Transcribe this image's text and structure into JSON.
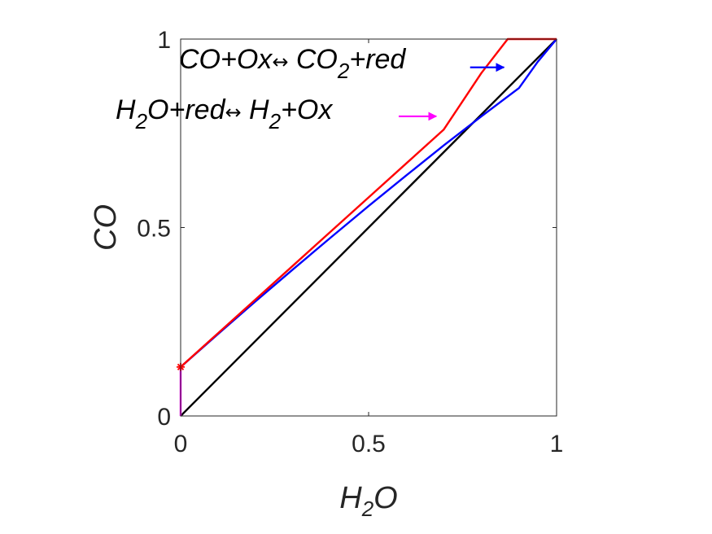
{
  "chart_data": {
    "type": "line",
    "xlabel": "H_2O",
    "ylabel": "CO",
    "xlim": [
      0,
      1
    ],
    "ylim": [
      0,
      1
    ],
    "xticks": [
      "0",
      "0.5",
      "1"
    ],
    "yticks": [
      "0",
      "0.5",
      "1"
    ],
    "grid": false,
    "series": [
      {
        "color": "#000000",
        "x": [
          0,
          1
        ],
        "y": [
          0,
          1
        ]
      },
      {
        "color": "#ff00ff",
        "x": [
          0,
          0
        ],
        "y": [
          0,
          0.13
        ]
      },
      {
        "color": "#0000ff",
        "x": [
          0,
          0.1,
          0.2,
          0.3,
          0.4,
          0.5,
          0.6,
          0.7,
          0.8,
          0.9,
          0.95,
          1.0
        ],
        "y": [
          0.13,
          0.218,
          0.305,
          0.39,
          0.474,
          0.557,
          0.638,
          0.718,
          0.795,
          0.87,
          0.94,
          1.0
        ]
      },
      {
        "color": "#ff0000",
        "x": [
          0,
          0.1,
          0.2,
          0.3,
          0.4,
          0.5,
          0.6,
          0.7,
          0.8,
          0.87,
          1.0
        ],
        "y": [
          0.13,
          0.22,
          0.31,
          0.4,
          0.49,
          0.58,
          0.67,
          0.76,
          0.91,
          1.0,
          1.0
        ]
      }
    ],
    "markers": [
      {
        "x": 0,
        "y": 0.13,
        "color": "#ff0000",
        "symbol": "*"
      }
    ],
    "annotations": [
      {
        "id": "co",
        "parts": [
          "CO+Ox",
          "↔",
          " CO",
          "2",
          "+red"
        ],
        "color": "#0000ff",
        "arrow_from": [
          0.77,
          0.925
        ],
        "arrow_to": [
          0.86,
          0.925
        ]
      },
      {
        "id": "h2o",
        "parts": [
          "H",
          "2",
          "O+red",
          "↔",
          " H",
          "2",
          "+Ox"
        ],
        "color": "#ff00ff",
        "arrow_from": [
          0.58,
          0.795
        ],
        "arrow_to": [
          0.68,
          0.795
        ]
      }
    ]
  }
}
